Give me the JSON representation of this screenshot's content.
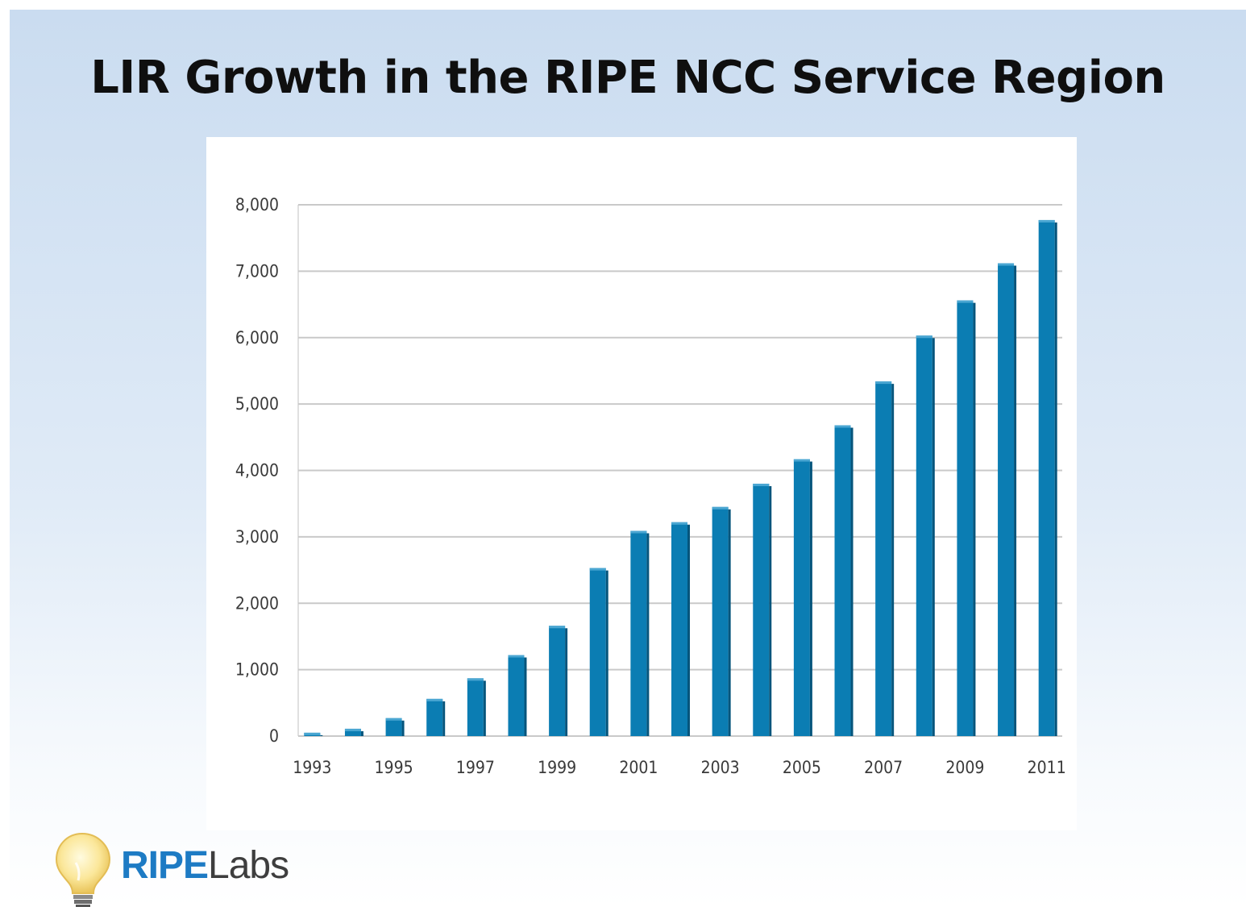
{
  "title": "LIR Growth in the RIPE NCC Service Region",
  "logo": {
    "brand": "RIPE",
    "product": "Labs",
    "brand_color": "#1d7bc4",
    "product_color": "#3e3e3e",
    "icon": "lightbulb-icon"
  },
  "colors": {
    "bar": "#0b7db3",
    "bar_dark": "#06557c",
    "bar_top": "#4aa6d2",
    "grid": "#c9c9c9"
  },
  "chart_data": {
    "type": "bar",
    "title": "LIR Growth in the RIPE NCC Service Region",
    "xlabel": "",
    "ylabel": "",
    "categories": [
      "1993",
      "1994",
      "1995",
      "1996",
      "1997",
      "1998",
      "1999",
      "2000",
      "2001",
      "2002",
      "2003",
      "2004",
      "2005",
      "2006",
      "2007",
      "2008",
      "2009",
      "2010",
      "2011"
    ],
    "x_tick_labels": [
      "1993",
      "1995",
      "1997",
      "1999",
      "2001",
      "2003",
      "2005",
      "2007",
      "2009",
      "2011"
    ],
    "values": [
      50,
      110,
      270,
      560,
      870,
      1220,
      1660,
      2530,
      3090,
      3220,
      3450,
      3800,
      4170,
      4680,
      5340,
      6030,
      6560,
      7120,
      7770
    ],
    "ylim": [
      0,
      8000
    ],
    "y_ticks": [
      0,
      1000,
      2000,
      3000,
      4000,
      5000,
      6000,
      7000,
      8000
    ],
    "y_tick_labels": [
      "0",
      "1,000",
      "2,000",
      "3,000",
      "4,000",
      "5,000",
      "6,000",
      "7,000",
      "8,000"
    ],
    "grid": true,
    "legend": "none"
  }
}
